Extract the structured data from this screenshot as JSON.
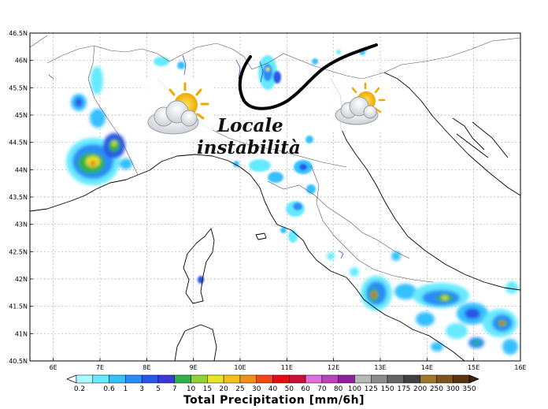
{
  "map": {
    "lat_ticks": [
      "46.5N",
      "46N",
      "45.5N",
      "45N",
      "44.5N",
      "44N",
      "43.5N",
      "43N",
      "42.5N",
      "42N",
      "41.5N",
      "41N",
      "40.5N"
    ],
    "lon_ticks": [
      "6E",
      "7E",
      "8E",
      "9E",
      "10E",
      "11E",
      "12E",
      "13E",
      "14E",
      "15E",
      "16E"
    ],
    "extent": {
      "lon_min": 5.5,
      "lon_max": 16.0,
      "lat_min": 40.5,
      "lat_max": 46.5
    },
    "grid": "dotted",
    "annotation": [
      "Locale",
      "instabilità"
    ],
    "weather_icons": [
      "partly-cloudy-icon",
      "partly-cloudy-icon"
    ],
    "front_line": "black-instability-line"
  },
  "colorbar": {
    "title": "Total Precipitation [mm/6h]",
    "labels": [
      "0.2",
      "0.6",
      "1",
      "3",
      "5",
      "7",
      "10",
      "15",
      "20",
      "25",
      "30",
      "40",
      "50",
      "60",
      "70",
      "80",
      "100",
      "125",
      "150",
      "175",
      "200",
      "250",
      "300",
      "350"
    ],
    "colors": [
      "#aafaff",
      "#66eaff",
      "#35c0ff",
      "#2a8cf5",
      "#2a55e6",
      "#3a3ad6",
      "#2fb04a",
      "#8fd23a",
      "#e5e52a",
      "#f2c021",
      "#f28e1c",
      "#ee4a16",
      "#e01010",
      "#c8103a",
      "#e070d8",
      "#c040c0",
      "#9020a0",
      "#b8b8b8",
      "#8c8c8c",
      "#646464",
      "#404040",
      "#a0762a",
      "#7c541c",
      "#5a3612"
    ]
  }
}
